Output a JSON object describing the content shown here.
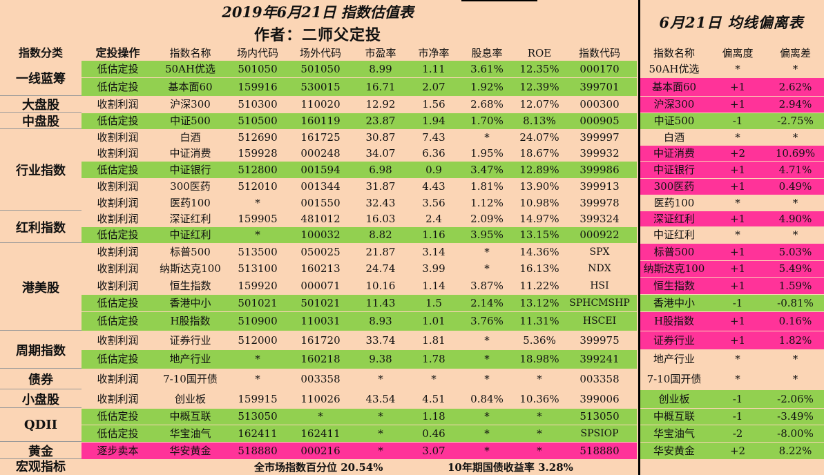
{
  "titles": {
    "main": "2019年6月21日 指数估值表",
    "author": "作者：二师父定投",
    "right": "6月21日 均线偏离表"
  },
  "headers": [
    "指数分类",
    "定投操作",
    "指数名称",
    "场内代码",
    "场外代码",
    "市盈率",
    "市净率",
    "股息率",
    "ROE",
    "指数代码",
    "指数名称",
    "偏离度",
    "偏离差"
  ],
  "categories": [
    {
      "label": "一线蓝筹",
      "rows": 2
    },
    {
      "label": "大盘股",
      "rows": 1
    },
    {
      "label": "中盘股",
      "rows": 1
    },
    {
      "label": "行业指数",
      "rows": 5
    },
    {
      "label": "红利指数",
      "rows": 2
    },
    {
      "label": "港美股",
      "rows": 5
    },
    {
      "label": "周期指数",
      "rows": 2
    },
    {
      "label": "债券",
      "rows": 1
    },
    {
      "label": "小盘股",
      "rows": 1
    },
    {
      "label": "QDII",
      "rows": 2
    },
    {
      "label": "黄金",
      "rows": 1
    }
  ],
  "rows": [
    {
      "op": "低估定投",
      "name": "50AH优选",
      "code_in": "501050",
      "code_out": "501050",
      "pe": "8.99",
      "pb": "1.11",
      "dy": "3.61%",
      "roe": "12.35%",
      "idx": "000170",
      "r_name": "50AH优选",
      "dev": "*",
      "diff": "*",
      "left": "green",
      "right": "peach"
    },
    {
      "op": "低估定投",
      "name": "基本面60",
      "code_in": "159916",
      "code_out": "530015",
      "pe": "16.71",
      "pb": "2.07",
      "dy": "1.92%",
      "roe": "12.39%",
      "idx": "399701",
      "r_name": "基本面60",
      "dev": "+1",
      "diff": "2.62%",
      "left": "green",
      "right": "pink"
    },
    {
      "op": "收割利润",
      "name": "沪深300",
      "code_in": "510300",
      "code_out": "110020",
      "pe": "12.92",
      "pb": "1.56",
      "dy": "2.68%",
      "roe": "12.07%",
      "idx": "000300",
      "r_name": "沪深300",
      "dev": "+1",
      "diff": "2.94%",
      "left": "peach",
      "right": "pink"
    },
    {
      "op": "低估定投",
      "name": "中证500",
      "code_in": "510500",
      "code_out": "160119",
      "pe": "23.87",
      "pb": "1.94",
      "dy": "1.70%",
      "roe": "8.13%",
      "idx": "000905",
      "r_name": "中证500",
      "dev": "-1",
      "diff": "-2.75%",
      "left": "green",
      "right": "green"
    },
    {
      "op": "收割利润",
      "name": "白酒",
      "code_in": "512690",
      "code_out": "161725",
      "pe": "30.87",
      "pb": "7.43",
      "dy": "*",
      "roe": "24.07%",
      "idx": "399997",
      "r_name": "白酒",
      "dev": "*",
      "diff": "*",
      "left": "peach",
      "right": "peach"
    },
    {
      "op": "收割利润",
      "name": "中证消费",
      "code_in": "159928",
      "code_out": "000248",
      "pe": "34.07",
      "pb": "6.36",
      "dy": "1.95%",
      "roe": "18.67%",
      "idx": "399932",
      "r_name": "中证消费",
      "dev": "+2",
      "diff": "10.69%",
      "left": "peach",
      "right": "pink"
    },
    {
      "op": "低估定投",
      "name": "中证银行",
      "code_in": "512800",
      "code_out": "001594",
      "pe": "6.98",
      "pb": "0.9",
      "dy": "3.47%",
      "roe": "12.89%",
      "idx": "399986",
      "r_name": "中证银行",
      "dev": "+1",
      "diff": "4.71%",
      "left": "green",
      "right": "pink"
    },
    {
      "op": "收割利润",
      "name": "300医药",
      "code_in": "512010",
      "code_out": "001344",
      "pe": "31.87",
      "pb": "4.43",
      "dy": "1.81%",
      "roe": "13.90%",
      "idx": "399913",
      "r_name": "300医药",
      "dev": "+1",
      "diff": "0.49%",
      "left": "peach",
      "right": "pink"
    },
    {
      "op": "收割利润",
      "name": "医药100",
      "code_in": "*",
      "code_out": "001550",
      "pe": "32.43",
      "pb": "3.56",
      "dy": "1.12%",
      "roe": "10.98%",
      "idx": "399978",
      "r_name": "医药100",
      "dev": "*",
      "diff": "*",
      "left": "peach",
      "right": "peach"
    },
    {
      "op": "收割利润",
      "name": "深证红利",
      "code_in": "159905",
      "code_out": "481012",
      "pe": "16.03",
      "pb": "2.4",
      "dy": "2.09%",
      "roe": "14.97%",
      "idx": "399324",
      "r_name": "深证红利",
      "dev": "+1",
      "diff": "4.90%",
      "left": "peach",
      "right": "pink"
    },
    {
      "op": "低估定投",
      "name": "中证红利",
      "code_in": "*",
      "code_out": "100032",
      "pe": "8.82",
      "pb": "1.16",
      "dy": "3.95%",
      "roe": "13.15%",
      "idx": "000922",
      "r_name": "中证红利",
      "dev": "*",
      "diff": "*",
      "left": "green",
      "right": "peach"
    },
    {
      "op": "收割利润",
      "name": "标普500",
      "code_in": "513500",
      "code_out": "050025",
      "pe": "21.87",
      "pb": "3.14",
      "dy": "*",
      "roe": "14.36%",
      "idx": "SPX",
      "r_name": "标普500",
      "dev": "+1",
      "diff": "5.03%",
      "left": "peach",
      "right": "pink"
    },
    {
      "op": "收割利润",
      "name": "纳斯达克100",
      "code_in": "513100",
      "code_out": "160213",
      "pe": "24.74",
      "pb": "3.99",
      "dy": "*",
      "roe": "16.13%",
      "idx": "NDX",
      "r_name": "纳斯达克100",
      "dev": "+1",
      "diff": "5.49%",
      "left": "peach",
      "right": "pink"
    },
    {
      "op": "收割利润",
      "name": "恒生指数",
      "code_in": "159920",
      "code_out": "000071",
      "pe": "10.16",
      "pb": "1.14",
      "dy": "3.87%",
      "roe": "11.22%",
      "idx": "HSI",
      "r_name": "恒生指数",
      "dev": "+1",
      "diff": "1.59%",
      "left": "peach",
      "right": "pink"
    },
    {
      "op": "低估定投",
      "name": "香港中小",
      "code_in": "501021",
      "code_out": "501021",
      "pe": "11.43",
      "pb": "1.5",
      "dy": "2.14%",
      "roe": "13.12%",
      "idx": "SPHCMSHP",
      "r_name": "香港中小",
      "dev": "-1",
      "diff": "-0.81%",
      "left": "green",
      "right": "green"
    },
    {
      "op": "低估定投",
      "name": "H股指数",
      "code_in": "510900",
      "code_out": "110031",
      "pe": "8.93",
      "pb": "1.01",
      "dy": "3.76%",
      "roe": "11.31%",
      "idx": "HSCEI",
      "r_name": "H股指数",
      "dev": "+1",
      "diff": "0.16%",
      "left": "green",
      "right": "pink"
    },
    {
      "op": "收割利润",
      "name": "证券行业",
      "code_in": "512000",
      "code_out": "161720",
      "pe": "33.74",
      "pb": "1.81",
      "dy": "*",
      "roe": "5.36%",
      "idx": "399975",
      "r_name": "证券行业",
      "dev": "+1",
      "diff": "1.82%",
      "left": "peach",
      "right": "pink"
    },
    {
      "op": "低估定投",
      "name": "地产行业",
      "code_in": "*",
      "code_out": "160218",
      "pe": "9.38",
      "pb": "1.78",
      "dy": "*",
      "roe": "18.98%",
      "idx": "399241",
      "r_name": "地产行业",
      "dev": "*",
      "diff": "*",
      "left": "green",
      "right": "peach"
    },
    {
      "op": "收割利润",
      "name": "7-10国开债",
      "code_in": "*",
      "code_out": "003358",
      "pe": "*",
      "pb": "*",
      "dy": "*",
      "roe": "",
      "idx": "003358",
      "r_name": "7-10国开债",
      "dev": "*",
      "diff": "*",
      "left": "peach",
      "right": "peach",
      "roe_star": "*"
    },
    {
      "op": "收割利润",
      "name": "创业板",
      "code_in": "159915",
      "code_out": "110026",
      "pe": "43.54",
      "pb": "4.51",
      "dy": "0.84%",
      "roe": "10.36%",
      "idx": "399006",
      "r_name": "创业板",
      "dev": "-1",
      "diff": "-2.06%",
      "left": "peach",
      "right": "green"
    },
    {
      "op": "低估定投",
      "name": "中概互联",
      "code_in": "513050",
      "code_out": "*",
      "pe": "*",
      "pb": "1.18",
      "dy": "*",
      "roe": "*",
      "idx": "513050",
      "r_name": "中概互联",
      "dev": "-1",
      "diff": "-3.49%",
      "left": "green",
      "right": "green"
    },
    {
      "op": "低估定投",
      "name": "华宝油气",
      "code_in": "162411",
      "code_out": "162411",
      "pe": "*",
      "pb": "0.46",
      "dy": "*",
      "roe": "*",
      "idx": "SPSIOP",
      "r_name": "华宝油气",
      "dev": "-2",
      "diff": "-8.00%",
      "left": "green",
      "right": "green"
    },
    {
      "op": "逐步卖本",
      "name": "华安黄金",
      "code_in": "518880",
      "code_out": "000216",
      "pe": "*",
      "pb": "3.07",
      "dy": "*",
      "roe": "*",
      "idx": "518880",
      "r_name": "华安黄金",
      "dev": "+2",
      "diff": "8.22%",
      "left": "pink",
      "right": "green"
    }
  ],
  "macro": {
    "label": "宏观指标",
    "market_pct": "全市场指数百分位 20.54%",
    "bond_yield": "10年期国债收益率 3.28%"
  },
  "colors": {
    "green": "#92d050",
    "pink": "#ff3399",
    "peach": "#fbd5b5",
    "divider": "#000000"
  }
}
